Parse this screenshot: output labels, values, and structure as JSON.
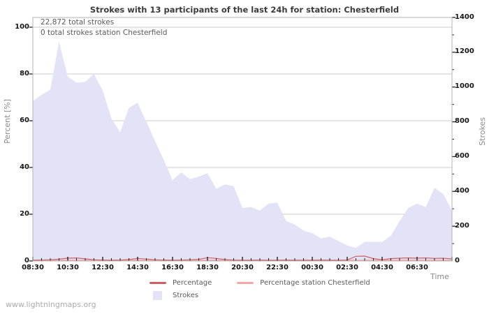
{
  "title": "Strokes with 13 participants of the last 24h for station: Chesterfield",
  "annotations": {
    "total": "22,872 total strokes",
    "station_total": "0 total strokes station Chesterfield"
  },
  "watermark": "www.lightningmaps.org",
  "axes": {
    "left": {
      "label": "Percent [%]",
      "ticks": [
        0,
        20,
        40,
        60,
        80,
        100
      ],
      "range": [
        0,
        100
      ]
    },
    "right": {
      "label": "Strokes",
      "ticks": [
        0,
        200,
        400,
        600,
        800,
        1000,
        1200,
        1400
      ],
      "range": [
        0,
        1400
      ]
    },
    "x": {
      "label": "Time",
      "ticks": [
        "08:30",
        "10:30",
        "12:30",
        "14:30",
        "16:30",
        "18:30",
        "20:30",
        "22:30",
        "00:30",
        "02:30",
        "04:30",
        "06:30"
      ]
    }
  },
  "legend": [
    {
      "label": "Percentage",
      "color": "#cd6161",
      "type": "line"
    },
    {
      "label": "Percentage station Chesterfield",
      "color": "#f2a8a8",
      "type": "line"
    },
    {
      "label": "Strokes",
      "color": "#e3e3f7",
      "type": "area"
    }
  ],
  "colors": {
    "area": "#e3e3f7",
    "percentage": "#cd6161",
    "station": "#f2a8a8",
    "grid": "#cbcbcb",
    "border": "#b3b3b3",
    "tick": "#222222"
  },
  "chart_data": {
    "type": "area",
    "title": "Strokes with 13 participants of the last 24h for station: Chesterfield",
    "xlabel": "Time",
    "ylabel_left": "Percent [%]",
    "ylabel_right": "Strokes",
    "ylim_left": [
      0,
      100
    ],
    "ylim_right": [
      0,
      1400
    ],
    "grid": true,
    "legend_position": "bottom",
    "x": [
      "08:30",
      "09:00",
      "09:30",
      "10:00",
      "10:30",
      "11:00",
      "11:30",
      "12:00",
      "12:30",
      "13:00",
      "13:30",
      "14:00",
      "14:30",
      "15:00",
      "15:30",
      "16:00",
      "16:30",
      "17:00",
      "17:30",
      "18:00",
      "18:30",
      "19:00",
      "19:30",
      "20:00",
      "20:30",
      "21:00",
      "21:30",
      "22:00",
      "22:30",
      "23:00",
      "23:30",
      "00:00",
      "00:30",
      "01:00",
      "01:30",
      "02:00",
      "02:30",
      "03:00",
      "03:30",
      "04:00",
      "04:30",
      "05:00",
      "05:30",
      "06:00",
      "06:30",
      "07:00",
      "07:30",
      "08:00",
      "08:30"
    ],
    "series": [
      {
        "name": "Strokes",
        "axis": "right",
        "type": "area",
        "values": [
          920,
          955,
          985,
          1260,
          1060,
          1025,
          1030,
          1075,
          980,
          820,
          740,
          880,
          910,
          800,
          690,
          580,
          465,
          510,
          470,
          485,
          505,
          415,
          440,
          430,
          305,
          310,
          290,
          330,
          335,
          230,
          210,
          175,
          160,
          130,
          140,
          115,
          90,
          75,
          110,
          110,
          110,
          145,
          230,
          305,
          330,
          310,
          420,
          385,
          290
        ]
      },
      {
        "name": "Percentage",
        "axis": "left",
        "type": "line",
        "values": [
          0.3,
          0.4,
          0.5,
          0.8,
          1.2,
          1.3,
          0.9,
          0.5,
          0.4,
          0.3,
          0.4,
          0.6,
          1.1,
          0.8,
          0.5,
          0.4,
          0.3,
          0.4,
          0.5,
          0.7,
          1.4,
          1.1,
          0.6,
          0.4,
          0.3,
          0.3,
          0.4,
          0.3,
          0.3,
          0.4,
          0.3,
          0.3,
          0.3,
          0.4,
          0.3,
          0.3,
          0.4,
          2.0,
          2.1,
          1.0,
          0.5,
          1.0,
          1.2,
          1.3,
          1.2,
          1.3,
          1.1,
          1.2,
          0.9
        ]
      },
      {
        "name": "Percentage station Chesterfield",
        "axis": "left",
        "type": "line",
        "values": [
          0,
          0,
          0,
          0,
          0,
          0,
          0,
          0,
          0,
          0,
          0,
          0,
          0,
          0,
          0,
          0,
          0,
          0,
          0,
          0,
          0,
          0,
          0,
          0,
          0,
          0,
          0,
          0,
          0,
          0,
          0,
          0,
          0,
          0,
          0,
          0,
          0,
          0,
          0,
          0,
          0,
          0,
          0,
          0,
          0,
          0,
          0,
          0,
          0
        ]
      }
    ]
  }
}
